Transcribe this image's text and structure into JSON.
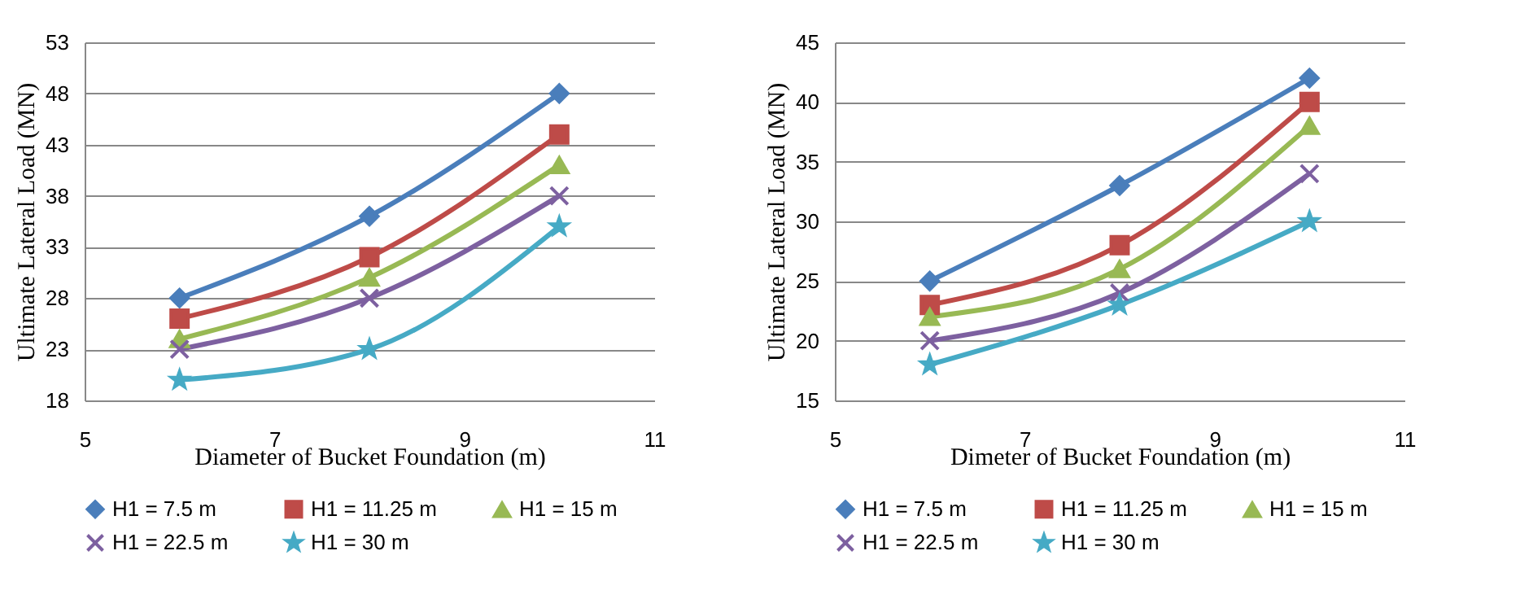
{
  "chart_data": [
    {
      "type": "line",
      "x": [
        6,
        8,
        10
      ],
      "xlabel": "Diameter of Bucket Foundation (m)",
      "ylabel": "Ultimate Lateral Load (MN)",
      "xlim": [
        5,
        11
      ],
      "xticks": [
        5,
        7,
        9,
        11
      ],
      "ylim": [
        18,
        53
      ],
      "yticks": [
        18,
        23,
        28,
        33,
        38,
        43,
        48,
        53
      ],
      "grid": "y",
      "legend": "bottom",
      "series": [
        {
          "name": "H1 = 7.5 m",
          "color": "#4a7ebb",
          "marker": "diamond",
          "values": [
            28,
            36,
            48
          ]
        },
        {
          "name": "H1 = 11.25 m",
          "color": "#be4b48",
          "marker": "square",
          "values": [
            26,
            32,
            44
          ]
        },
        {
          "name": "H1 = 15 m",
          "color": "#98b954",
          "marker": "triangle",
          "values": [
            24,
            30,
            41
          ]
        },
        {
          "name": "H1 = 22.5 m",
          "color": "#7d60a0",
          "marker": "cross",
          "values": [
            23,
            28,
            38
          ]
        },
        {
          "name": "H1 = 30 m",
          "color": "#46aac5",
          "marker": "star",
          "values": [
            20,
            23,
            35
          ]
        }
      ]
    },
    {
      "type": "line",
      "x": [
        6,
        8,
        10
      ],
      "xlabel": "Dimeter of Bucket Foundation (m)",
      "ylabel": "Ultimate Lateral Load (MN)",
      "xlim": [
        5,
        11
      ],
      "xticks": [
        5,
        7,
        9,
        11
      ],
      "ylim": [
        15,
        45
      ],
      "yticks": [
        15,
        20,
        25,
        30,
        35,
        40,
        45
      ],
      "grid": "y",
      "legend": "bottom",
      "series": [
        {
          "name": "H1 = 7.5 m",
          "color": "#4a7ebb",
          "marker": "diamond",
          "values": [
            25,
            33,
            42
          ]
        },
        {
          "name": "H1 = 11.25 m",
          "color": "#be4b48",
          "marker": "square",
          "values": [
            23,
            28,
            40
          ]
        },
        {
          "name": "H1 = 15 m",
          "color": "#98b954",
          "marker": "triangle",
          "values": [
            22,
            26,
            38
          ]
        },
        {
          "name": "H1 = 22.5 m",
          "color": "#7d60a0",
          "marker": "cross",
          "values": [
            20,
            24,
            34
          ]
        },
        {
          "name": "H1 = 30 m",
          "color": "#46aac5",
          "marker": "star",
          "values": [
            18,
            23,
            30
          ]
        }
      ]
    }
  ]
}
